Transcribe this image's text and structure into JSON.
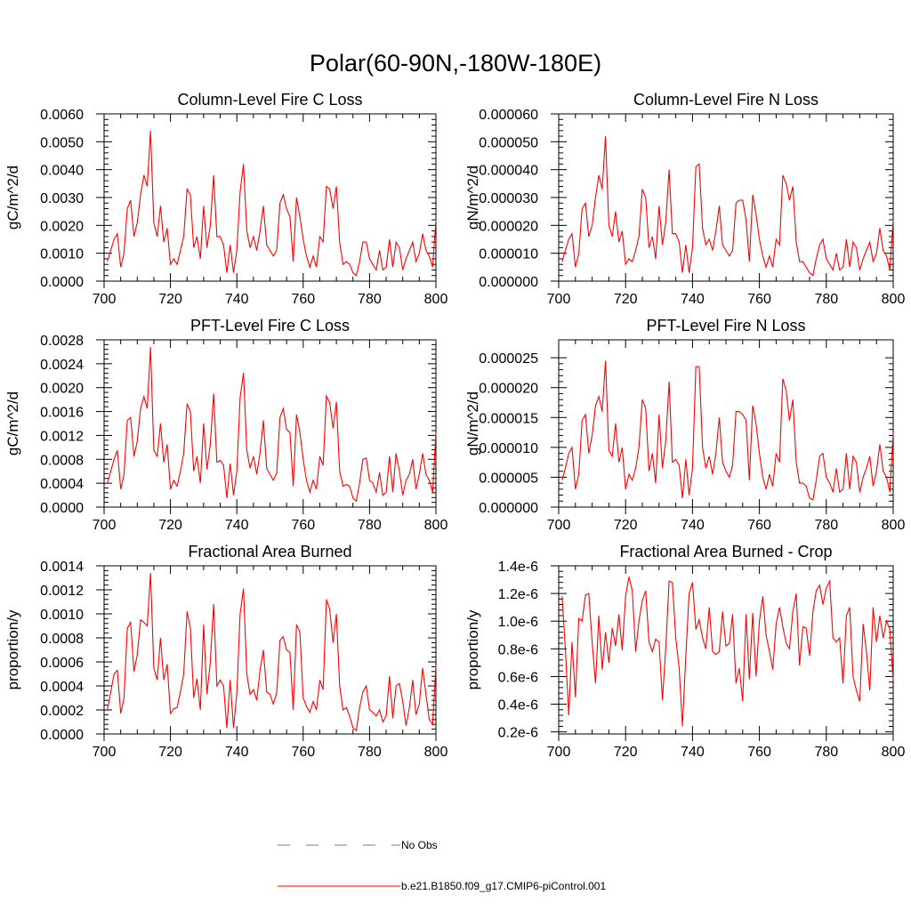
{
  "figure_title": "Polar(60-90N,-180W-180E)",
  "colors": {
    "model": "#ff0000",
    "obs": "#6b74c9",
    "axis": "#000000"
  },
  "legend": {
    "obs_label": "No Obs",
    "model_label": "b.e21.B1850.f09_g17.CMIP6-piControl.001"
  },
  "chart_data": [
    {
      "type": "line",
      "title": "Column-Level Fire C Loss",
      "ylabel": "gC/m^2/d",
      "xlabel": "",
      "xlim": [
        700,
        800
      ],
      "ylim": [
        0,
        0.006
      ],
      "xticks": [
        700,
        720,
        740,
        760,
        780,
        800
      ],
      "xtick_labels": [
        "700",
        "720",
        "740",
        "760",
        "780",
        "800"
      ],
      "yticks": [
        0,
        0.001,
        0.002,
        0.003,
        0.004,
        0.005,
        0.006
      ],
      "ytick_labels": [
        "0.0000",
        "0.0010",
        "0.0020",
        "0.0030",
        "0.0040",
        "0.0050",
        "0.0060"
      ],
      "x_start": 701,
      "series": [
        {
          "name": "b.e21.B1850.f09_g17.CMIP6-piControl.001",
          "values": [
            0.0007,
            0.0011,
            0.0015,
            0.0017,
            0.0005,
            0.001,
            0.0026,
            0.0029,
            0.0016,
            0.0021,
            0.0031,
            0.0038,
            0.0034,
            0.0054,
            0.0021,
            0.0016,
            0.0027,
            0.0014,
            0.0019,
            0.0006,
            0.0008,
            0.0006,
            0.0011,
            0.0016,
            0.0033,
            0.0031,
            0.0012,
            0.0016,
            0.0008,
            0.0027,
            0.0012,
            0.002,
            0.0038,
            0.0016,
            0.0016,
            0.0013,
            0.0003,
            0.0013,
            0.0003,
            0.0011,
            0.0032,
            0.0042,
            0.0018,
            0.0012,
            0.0016,
            0.0011,
            0.0018,
            0.0027,
            0.0013,
            0.0011,
            0.0009,
            0.0011,
            0.0028,
            0.0031,
            0.0026,
            0.0023,
            0.0007,
            0.003,
            0.0023,
            0.0015,
            0.0009,
            0.0005,
            0.0009,
            0.0005,
            0.0016,
            0.0014,
            0.0034,
            0.0033,
            0.0026,
            0.0034,
            0.0014,
            0.0006,
            0.0007,
            0.0006,
            0.0003,
            0.0002,
            0.0007,
            0.0014,
            0.0014,
            0.0008,
            0.0006,
            0.0004,
            0.0011,
            0.0004,
            0.0005,
            0.0015,
            0.0005,
            0.0014,
            0.0012,
            0.0004,
            0.0008,
            0.0011,
            0.0014,
            0.0007,
            0.001,
            0.0017,
            0.0011,
            0.0009,
            0.0005,
            0.0022
          ]
        }
      ]
    },
    {
      "type": "line",
      "title": "Column-Level Fire N Loss",
      "ylabel": "gN/m^2/d",
      "xlabel": "",
      "xlim": [
        700,
        800
      ],
      "ylim": [
        0,
        6e-05
      ],
      "xticks": [
        700,
        720,
        740,
        760,
        780,
        800
      ],
      "xtick_labels": [
        "700",
        "720",
        "740",
        "760",
        "780",
        "800"
      ],
      "yticks": [
        0,
        1e-05,
        2e-05,
        3e-05,
        4e-05,
        5e-05,
        6e-05
      ],
      "ytick_labels": [
        "0.000000",
        "0.000010",
        "0.000020",
        "0.000030",
        "0.000040",
        "0.000050",
        "0.000060"
      ],
      "x_start": 701,
      "series": [
        {
          "name": "b.e21.B1850.f09_g17.CMIP6-piControl.001",
          "values": [
            7e-06,
            1.1e-05,
            1.5e-05,
            1.7e-05,
            5e-06,
            1e-05,
            2.6e-05,
            2.8e-05,
            1.6e-05,
            2e-05,
            3e-05,
            3.8e-05,
            3.3e-05,
            5.2e-05,
            2e-05,
            1.6e-05,
            2.5e-05,
            1.4e-05,
            1.8e-05,
            6e-06,
            8e-06,
            7e-06,
            1.1e-05,
            1.6e-05,
            3.3e-05,
            3e-05,
            1.2e-05,
            1.6e-05,
            8e-06,
            2.7e-05,
            1.3e-05,
            2.1e-05,
            4e-05,
            1.7e-05,
            1.7e-05,
            1.4e-05,
            3e-06,
            1.3e-05,
            3e-06,
            1.2e-05,
            4.1e-05,
            4.2e-05,
            1.9e-05,
            1.3e-05,
            1.5e-05,
            1.1e-05,
            1.8e-05,
            2.7e-05,
            1.3e-05,
            1.1e-05,
            9e-06,
            1.1e-05,
            2.8e-05,
            2.9e-05,
            2.9e-05,
            2.2e-05,
            7e-06,
            3.1e-05,
            2.4e-05,
            1.5e-05,
            9e-06,
            5e-06,
            9e-06,
            5e-06,
            1.5e-05,
            1.3e-05,
            3.8e-05,
            3.5e-05,
            2.9e-05,
            3.4e-05,
            1.4e-05,
            7e-06,
            7e-06,
            5e-06,
            3e-06,
            2e-06,
            8e-06,
            1.3e-05,
            1.5e-05,
            8e-06,
            6e-06,
            4e-06,
            1e-05,
            4e-06,
            5e-06,
            1.5e-05,
            5e-06,
            1.4e-05,
            1.2e-05,
            4e-06,
            8e-06,
            1.1e-05,
            1.4e-05,
            7e-06,
            1e-05,
            1.9e-05,
            1.1e-05,
            9e-06,
            4e-06,
            2.2e-05
          ]
        }
      ]
    },
    {
      "type": "line",
      "title": "PFT-Level Fire C Loss",
      "ylabel": "gC/m^2/d",
      "xlabel": "",
      "xlim": [
        700,
        800
      ],
      "ylim": [
        0,
        0.0028
      ],
      "xticks": [
        700,
        720,
        740,
        760,
        780,
        800
      ],
      "xtick_labels": [
        "700",
        "720",
        "740",
        "760",
        "780",
        "800"
      ],
      "yticks": [
        0,
        0.0004,
        0.0008,
        0.0012,
        0.0016,
        0.002,
        0.0024,
        0.0028
      ],
      "ytick_labels": [
        "0.0000",
        "0.0004",
        "0.0008",
        "0.0012",
        "0.0016",
        "0.0020",
        "0.0024",
        "0.0028"
      ],
      "x_start": 701,
      "series": [
        {
          "name": "b.e21.B1850.f09_g17.CMIP6-piControl.001",
          "values": [
            0.0004,
            0.0006,
            0.0008,
            0.00095,
            0.0003,
            0.00055,
            0.00145,
            0.0015,
            0.00085,
            0.0011,
            0.00165,
            0.00185,
            0.00165,
            0.00268,
            0.00095,
            0.00085,
            0.0014,
            0.00075,
            0.00105,
            0.0003,
            0.00045,
            0.00035,
            0.0006,
            0.0009,
            0.00173,
            0.0016,
            0.0006,
            0.00085,
            0.0004,
            0.0014,
            0.00063,
            0.00105,
            0.0019,
            0.00075,
            0.00078,
            0.0007,
            0.00015,
            0.00073,
            0.0002,
            0.0006,
            0.00183,
            0.00225,
            0.00095,
            0.00065,
            0.00085,
            0.00055,
            0.0009,
            0.00145,
            0.00065,
            0.00055,
            0.00045,
            0.00057,
            0.0015,
            0.00165,
            0.0013,
            0.00125,
            0.00035,
            0.00155,
            0.00125,
            0.0008,
            0.00045,
            0.00025,
            0.00045,
            0.0003,
            0.00085,
            0.0007,
            0.00186,
            0.00175,
            0.00132,
            0.00176,
            0.0006,
            0.00035,
            0.00038,
            0.00035,
            0.00015,
            0.0001,
            0.0004,
            0.0008,
            0.00082,
            0.00045,
            0.0004,
            0.00025,
            0.00058,
            0.0002,
            0.00025,
            0.00085,
            0.00025,
            0.0009,
            0.0006,
            0.0002,
            0.00045,
            0.00055,
            0.0008,
            0.0003,
            0.00055,
            0.0009,
            0.00055,
            0.00045,
            0.00025,
            0.00125
          ]
        }
      ]
    },
    {
      "type": "line",
      "title": "PFT-Level Fire N Loss",
      "ylabel": "gN/m^2/d",
      "xlabel": "",
      "xlim": [
        700,
        800
      ],
      "ylim": [
        0,
        2.8e-05
      ],
      "xticks": [
        700,
        720,
        740,
        760,
        780,
        800
      ],
      "xtick_labels": [
        "700",
        "720",
        "740",
        "760",
        "780",
        "800"
      ],
      "yticks": [
        0,
        5e-06,
        1e-05,
        1.5e-05,
        2e-05,
        2.5e-05
      ],
      "ytick_labels": [
        "0.000000",
        "0.000005",
        "0.000010",
        "0.000015",
        "0.000020",
        "0.000025"
      ],
      "x_start": 701,
      "series": [
        {
          "name": "b.e21.B1850.f09_g17.CMIP6-piControl.001",
          "values": [
            4.5e-06,
            6.5e-06,
            9e-06,
            1e-05,
            3e-06,
            5.5e-06,
            1.45e-05,
            1.55e-05,
            9e-06,
            1.2e-05,
            1.7e-05,
            1.85e-05,
            1.6e-05,
            2.45e-05,
            9.5e-06,
            8.5e-06,
            1.4e-05,
            7.5e-06,
            1e-05,
            3e-06,
            5.5e-06,
            4.5e-06,
            6.5e-06,
            1e-05,
            1.8e-05,
            1.65e-05,
            6e-06,
            9e-06,
            4e-06,
            1.55e-05,
            6.5e-06,
            1.1e-05,
            2.1e-05,
            7.5e-06,
            8e-06,
            7e-06,
            1.5e-06,
            8e-06,
            2e-06,
            6.5e-06,
            2.35e-05,
            2.35e-05,
            1e-05,
            6.5e-06,
            8.5e-06,
            5.5e-06,
            9e-06,
            1.5e-05,
            7.5e-06,
            6e-06,
            5e-06,
            7e-06,
            1.6e-05,
            1.6e-05,
            1.55e-05,
            1.45e-05,
            4.5e-06,
            1.7e-05,
            1.4e-05,
            9e-06,
            5e-06,
            3e-06,
            5.5e-06,
            3.5e-06,
            9e-06,
            7.5e-06,
            2.15e-05,
            1.95e-05,
            1.45e-05,
            1.8e-05,
            7.5e-06,
            4e-06,
            4e-06,
            3.5e-06,
            1.5e-06,
            1.2e-06,
            4.5e-06,
            8.5e-06,
            9e-06,
            5e-06,
            4e-06,
            2.5e-06,
            6.5e-06,
            2.5e-06,
            3e-06,
            9e-06,
            3e-06,
            8.5e-06,
            7.5e-06,
            2.5e-06,
            5e-06,
            6.5e-06,
            8.5e-06,
            3.5e-06,
            6e-06,
            1.05e-05,
            6e-06,
            5e-06,
            2.5e-06,
            1.25e-05
          ]
        }
      ]
    },
    {
      "type": "line",
      "title": "Fractional Area Burned",
      "ylabel": "proportion/y",
      "xlabel": "",
      "xlim": [
        700,
        800
      ],
      "ylim": [
        0,
        0.0014
      ],
      "xticks": [
        700,
        720,
        740,
        760,
        780,
        800
      ],
      "xtick_labels": [
        "700",
        "720",
        "740",
        "760",
        "780",
        "800"
      ],
      "yticks": [
        0,
        0.0002,
        0.0004,
        0.0006,
        0.0008,
        0.001,
        0.0012,
        0.0014
      ],
      "ytick_labels": [
        "0.0000",
        "0.0002",
        "0.0004",
        "0.0006",
        "0.0008",
        "0.0010",
        "0.0012",
        "0.0014"
      ],
      "x_start": 701,
      "series": [
        {
          "name": "b.e21.B1850.f09_g17.CMIP6-piControl.001",
          "values": [
            0.0002,
            0.00035,
            0.0005,
            0.00053,
            0.00017,
            0.0003,
            0.00088,
            0.00093,
            0.00052,
            0.00066,
            0.00095,
            0.00093,
            0.0009,
            0.00134,
            0.00055,
            0.00045,
            0.0008,
            0.00045,
            0.00058,
            0.00017,
            0.00021,
            0.00022,
            0.00035,
            0.0005,
            0.00102,
            0.00088,
            0.0003,
            0.00046,
            0.0002,
            0.00091,
            0.00033,
            0.0006,
            0.00108,
            0.0004,
            0.00045,
            0.0004,
            5e-05,
            0.00045,
            5e-05,
            0.00034,
            0.001,
            0.00121,
            0.0005,
            0.00033,
            0.00037,
            0.00028,
            0.00053,
            0.0007,
            0.00035,
            0.00033,
            0.00025,
            0.00034,
            0.00078,
            0.00081,
            0.0007,
            0.00068,
            0.0002,
            0.00091,
            0.00085,
            0.0003,
            0.00023,
            0.00018,
            0.00027,
            0.0002,
            0.00045,
            0.00037,
            0.00112,
            0.00104,
            0.00076,
            0.001,
            0.0004,
            0.0002,
            0.00022,
            0.00015,
            5e-05,
            3e-05,
            0.00022,
            0.00035,
            0.0004,
            0.0002,
            0.00018,
            0.00015,
            0.0002,
            0.0001,
            0.00015,
            0.00048,
            0.00013,
            0.0004,
            0.00042,
            0.00027,
            7e-05,
            0.00022,
            0.00045,
            0.00016,
            0.00025,
            0.00055,
            0.00033,
            0.00012,
            8e-05,
            0.00057
          ]
        }
      ]
    },
    {
      "type": "line",
      "title": "Fractional Area Burned - Crop",
      "ylabel": "proportion/y",
      "xlabel": "",
      "xlim": [
        700,
        800
      ],
      "ylim": [
        1.85e-07,
        1.4e-06
      ],
      "xticks": [
        700,
        720,
        740,
        760,
        780,
        800
      ],
      "xtick_labels": [
        "700",
        "720",
        "740",
        "760",
        "780",
        "800"
      ],
      "yticks": [
        2e-07,
        4e-07,
        6e-07,
        8e-07,
        1e-06,
        1.2e-06,
        1.4e-06
      ],
      "ytick_labels": [
        "0.2e-6",
        "0.4e-6",
        "0.6e-6",
        "0.8e-6",
        "1.0e-6",
        "1.2e-6",
        "1.4e-6"
      ],
      "x_start": 701,
      "series": [
        {
          "name": "b.e21.B1850.f09_g17.CMIP6-piControl.001",
          "values": [
            1.18e-06,
            8e-07,
            3.2e-07,
            8.5e-07,
            4.5e-07,
            1.02e-06,
            1e-06,
            1.19e-06,
            1.2e-06,
            8.5e-07,
            5.5e-07,
            1.04e-06,
            6.5e-07,
            9.2e-07,
            7e-07,
            9.5e-07,
            8.2e-07,
            1.05e-06,
            7.9e-07,
            1.18e-06,
            1.32e-06,
            1.22e-06,
            7.8e-07,
            1e-06,
            1.15e-06,
            1.22e-06,
            8.5e-07,
            7.8e-07,
            8.7e-07,
            8.5e-07,
            4.3e-07,
            8e-07,
            1.29e-06,
            1.28e-06,
            8.8e-07,
            6.6e-07,
            2.4e-07,
            7.5e-07,
            1.2e-06,
            1.28e-06,
            9.4e-07,
            1.01e-06,
            8.8e-07,
            8e-07,
            1.1e-06,
            7.8e-07,
            7.6e-07,
            7.8e-07,
            1.07e-06,
            8.2e-07,
            8.4e-07,
            1.05e-06,
            5.5e-07,
            6.6e-07,
            4.2e-07,
            1.05e-06,
            5.8e-07,
            1.06e-06,
            6e-07,
            1e-06,
            1.18e-06,
            9e-07,
            7.8e-07,
            6.5e-07,
            9.8e-07,
            1.1e-06,
            9.6e-07,
            8.4e-07,
            8e-07,
            1.07e-06,
            1.2e-06,
            6.8e-07,
            9.6e-07,
            9.5e-07,
            7.5e-07,
            1.07e-06,
            1.22e-06,
            1.26e-06,
            1.12e-06,
            1.24e-06,
            1.29e-06,
            8.8e-07,
            8.5e-07,
            8.8e-07,
            5.5e-07,
            1.04e-06,
            1.1e-06,
            6e-07,
            5e-07,
            4.2e-07,
            9.8e-07,
            7.8e-07,
            5e-07,
            1.1e-06,
            8.5e-07,
            1.04e-06,
            8.8e-07,
            1e-06,
            9.4e-07,
            5.7e-07
          ]
        }
      ]
    }
  ]
}
